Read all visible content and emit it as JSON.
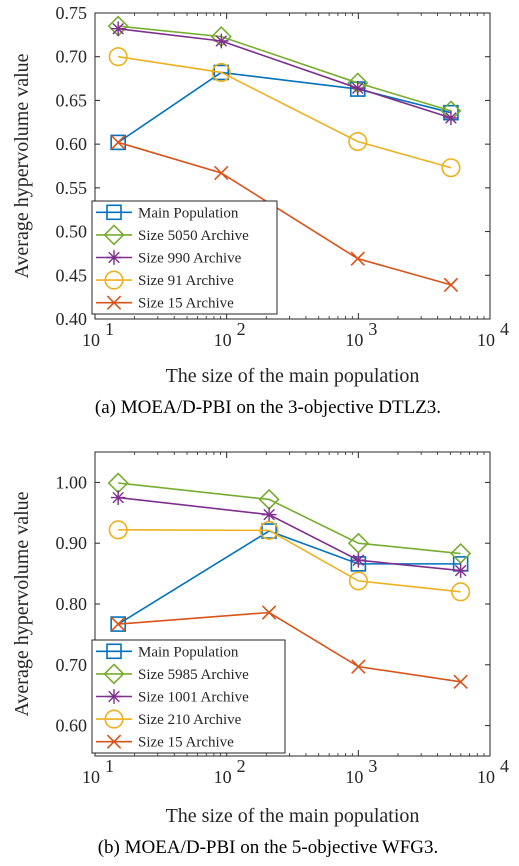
{
  "chart_data": [
    {
      "type": "line",
      "x": [
        15,
        91,
        990,
        5050
      ],
      "xscale": "log",
      "xlim": [
        10,
        10000
      ],
      "xticks": [
        {
          "base": "10",
          "exp": "1"
        },
        {
          "base": "10",
          "exp": "2"
        },
        {
          "base": "10",
          "exp": "3"
        },
        {
          "base": "10",
          "exp": "4"
        }
      ],
      "ylim": [
        0.4,
        0.75
      ],
      "yticks": [
        "0.40",
        "0.45",
        "0.50",
        "0.55",
        "0.60",
        "0.65",
        "0.70",
        "0.75"
      ],
      "xlabel": "The size of the main population",
      "ylabel": "Average hypervolume value",
      "caption": "(a) MOEA/D-PBI on the 3-objective DTLZ3.",
      "legend_position": "lower-left",
      "grid": false,
      "series": [
        {
          "name": "Main Population",
          "color": "#0072BD",
          "marker": "square",
          "values": [
            0.602,
            0.682,
            0.663,
            0.636
          ]
        },
        {
          "name": "Size 5050 Archive",
          "color": "#77AC30",
          "marker": "diamond",
          "values": [
            0.735,
            0.723,
            0.67,
            0.638
          ]
        },
        {
          "name": "Size 990 Archive",
          "color": "#7E2F8E",
          "marker": "asterisk",
          "values": [
            0.732,
            0.718,
            0.664,
            0.63
          ]
        },
        {
          "name": "Size 91 Archive",
          "color": "#EDB120",
          "marker": "circle",
          "values": [
            0.7,
            0.682,
            0.603,
            0.573
          ]
        },
        {
          "name": "Size 15 Archive",
          "color": "#D95319",
          "marker": "cross",
          "values": [
            0.602,
            0.567,
            0.469,
            0.439
          ]
        }
      ]
    },
    {
      "type": "line",
      "x": [
        15,
        210,
        1001,
        5985
      ],
      "xscale": "log",
      "xlim": [
        10,
        10000
      ],
      "xticks": [
        {
          "base": "10",
          "exp": "1"
        },
        {
          "base": "10",
          "exp": "2"
        },
        {
          "base": "10",
          "exp": "3"
        },
        {
          "base": "10",
          "exp": "4"
        }
      ],
      "ylim": [
        0.55,
        1.05
      ],
      "yticks": [
        "0.60",
        "0.70",
        "0.80",
        "0.90",
        "1.00"
      ],
      "xlabel": "The size of the main population",
      "ylabel": "Average hypervolume value",
      "caption": "(b) MOEA/D-PBI on the 5-objective WFG3.",
      "legend_position": "lower-left",
      "grid": false,
      "series": [
        {
          "name": "Main Population",
          "color": "#0072BD",
          "marker": "square",
          "values": [
            0.767,
            0.92,
            0.866,
            0.866
          ]
        },
        {
          "name": "Size 5985 Archive",
          "color": "#77AC30",
          "marker": "diamond",
          "values": [
            0.999,
            0.972,
            0.9,
            0.883
          ]
        },
        {
          "name": "Size 1001 Archive",
          "color": "#7E2F8E",
          "marker": "asterisk",
          "values": [
            0.975,
            0.947,
            0.872,
            0.855
          ]
        },
        {
          "name": "Size 210 Archive",
          "color": "#EDB120",
          "marker": "circle",
          "values": [
            0.922,
            0.921,
            0.838,
            0.82
          ]
        },
        {
          "name": "Size 15 Archive",
          "color": "#D95319",
          "marker": "cross",
          "values": [
            0.767,
            0.786,
            0.697,
            0.672
          ]
        }
      ]
    }
  ]
}
